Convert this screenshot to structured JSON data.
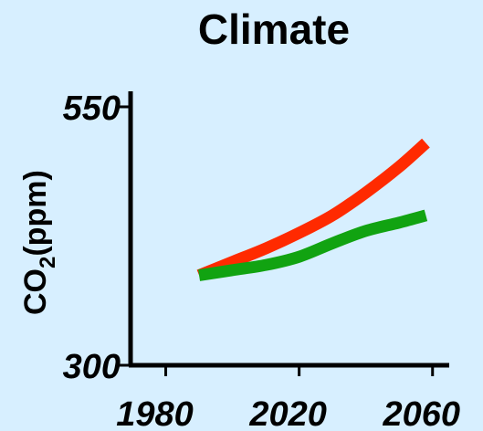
{
  "chart_data": {
    "type": "line",
    "title": "Climate",
    "xlabel": "",
    "ylabel": "CO2(ppm)",
    "ylabel_main": "CO",
    "ylabel_sub": "2",
    "ylabel_rest": "(ppm)",
    "xlim": [
      1970,
      2065
    ],
    "ylim": [
      300,
      565
    ],
    "x_ticks": [
      "1980",
      "2020",
      "2060"
    ],
    "y_ticks": [
      "300",
      "550"
    ],
    "grid": false,
    "series": [
      {
        "color": "#ff2a00",
        "x": [
          1990,
          2000,
          2010,
          2020,
          2030,
          2040,
          2050,
          2058
        ],
        "y": [
          387,
          400,
          413,
          428,
          445,
          467,
          492,
          515
        ]
      },
      {
        "color": "#11a311",
        "x": [
          1990,
          2000,
          2010,
          2020,
          2030,
          2040,
          2050,
          2058
        ],
        "y": [
          387,
          392,
          397,
          405,
          418,
          430,
          438,
          445
        ]
      }
    ]
  }
}
